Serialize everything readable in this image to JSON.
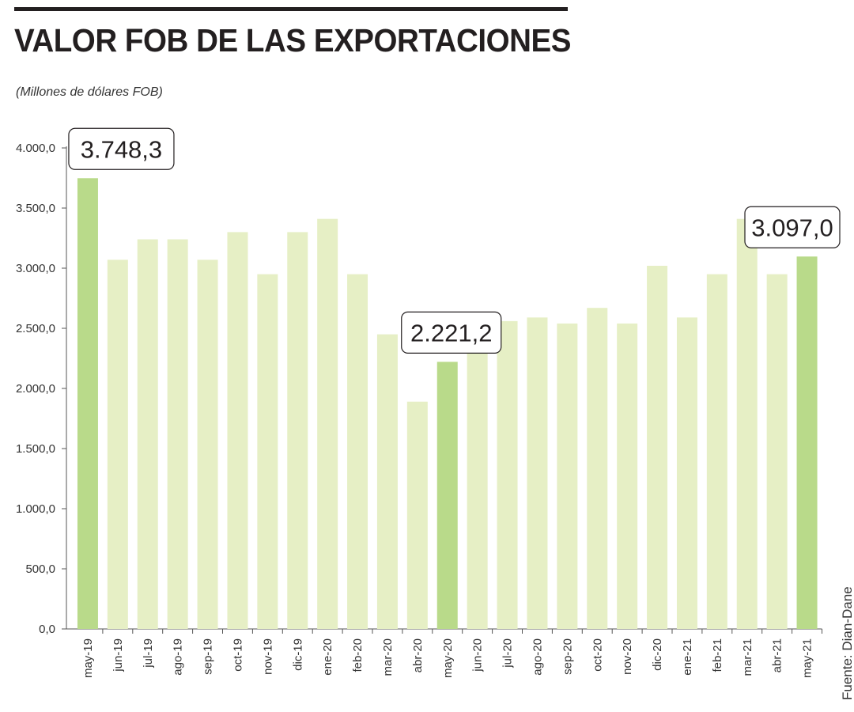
{
  "header": {
    "title": "VALOR FOB DE LAS EXPORTACIONES",
    "subtitle": "(Millones de dólares FOB)",
    "source": "Fuente: Dian-Dane"
  },
  "colors": {
    "bar": "#e6efc5",
    "bar_highlight": "#b9da8a",
    "text": "#231f20",
    "axis": "#555555"
  },
  "chart_data": {
    "type": "bar",
    "title": "VALOR FOB DE LAS EXPORTACIONES",
    "ylabel": "(Millones de dólares FOB)",
    "xlabel": "",
    "ylim": [
      0,
      4000
    ],
    "grid": false,
    "categories": [
      "may-19",
      "jun-19",
      "jul-19",
      "ago-19",
      "sep-19",
      "oct-19",
      "nov-19",
      "dic-19",
      "ene-20",
      "feb-20",
      "mar-20",
      "abr-20",
      "may-20",
      "jun-20",
      "jul-20",
      "ago-20",
      "sep-20",
      "oct-20",
      "nov-20",
      "dic-20",
      "ene-21",
      "feb-21",
      "mar-21",
      "abr-21",
      "may-21"
    ],
    "values": [
      3748.3,
      3070,
      3240,
      3240,
      3070,
      3300,
      2950,
      3300,
      3410,
      2950,
      2450,
      1890,
      2221.2,
      2290,
      2560,
      2590,
      2540,
      2670,
      2540,
      3020,
      2590,
      2950,
      3410,
      2950,
      3097.0
    ],
    "highlighted": [
      "may-19",
      "may-20",
      "may-21"
    ],
    "yticks": [
      0,
      500,
      1000,
      1500,
      2000,
      2500,
      3000,
      3500,
      4000
    ],
    "ytick_labels": [
      "0,0",
      "500,0",
      "1.000,0",
      "1.500,0",
      "2.000,0",
      "2.500,0",
      "3.000,0",
      "3.500,0",
      "4.000,0"
    ],
    "annotations": [
      {
        "category": "may-19",
        "text": "3.748,3"
      },
      {
        "category": "may-20",
        "text": "2.221,2"
      },
      {
        "category": "may-21",
        "text": "3.097,0"
      }
    ]
  }
}
